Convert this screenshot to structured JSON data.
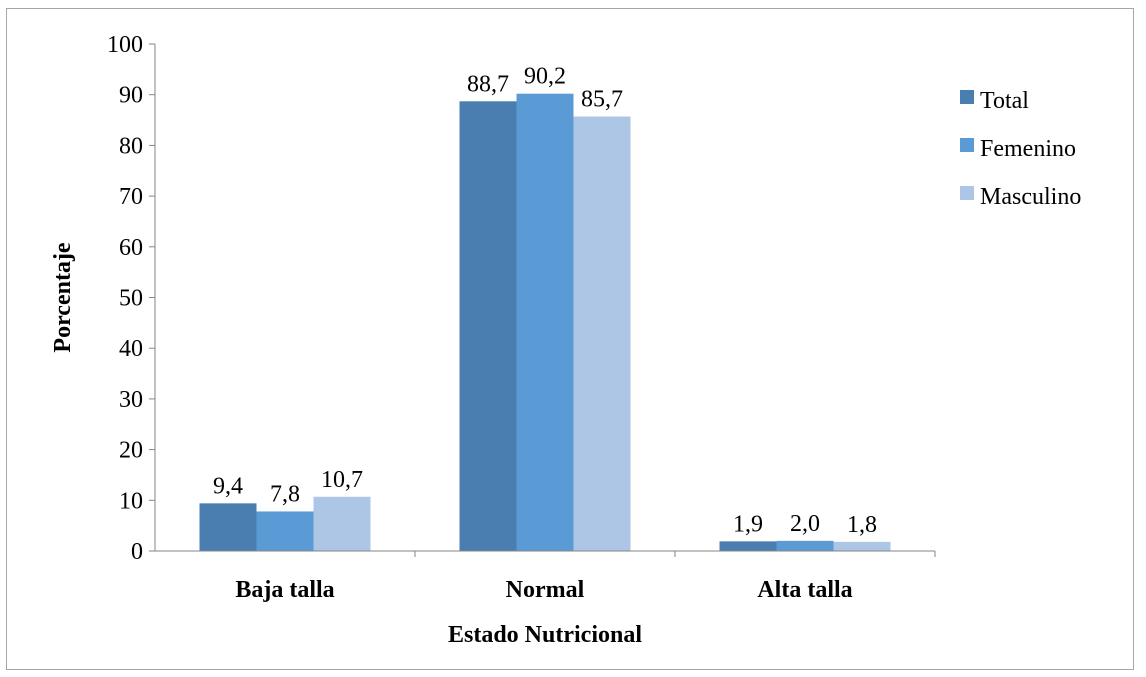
{
  "chart_data": {
    "type": "bar",
    "title": "",
    "xlabel": "Estado Nutricional",
    "ylabel": "Porcentaje",
    "ylim": [
      0,
      100
    ],
    "yticks": [
      "0",
      "10",
      "20",
      "30",
      "40",
      "50",
      "60",
      "70",
      "80",
      "90",
      "100"
    ],
    "categories": [
      "Baja talla",
      "Normal",
      "Alta talla"
    ],
    "grid": false,
    "legend_position": "right",
    "series": [
      {
        "name": "Total",
        "color": "#4a7eb0",
        "values": [
          9.4,
          88.7,
          1.9
        ],
        "labels": [
          "9,4",
          "88,7",
          "1,9"
        ]
      },
      {
        "name": "Femenino",
        "color": "#5b9bd5",
        "values": [
          7.8,
          90.2,
          2.0
        ],
        "labels": [
          "7,8",
          "90,2",
          "2,0"
        ]
      },
      {
        "name": "Masculino",
        "color": "#adc6e5",
        "values": [
          10.7,
          85.7,
          1.8
        ],
        "labels": [
          "10,7",
          "85,7",
          "1,8"
        ]
      }
    ]
  }
}
